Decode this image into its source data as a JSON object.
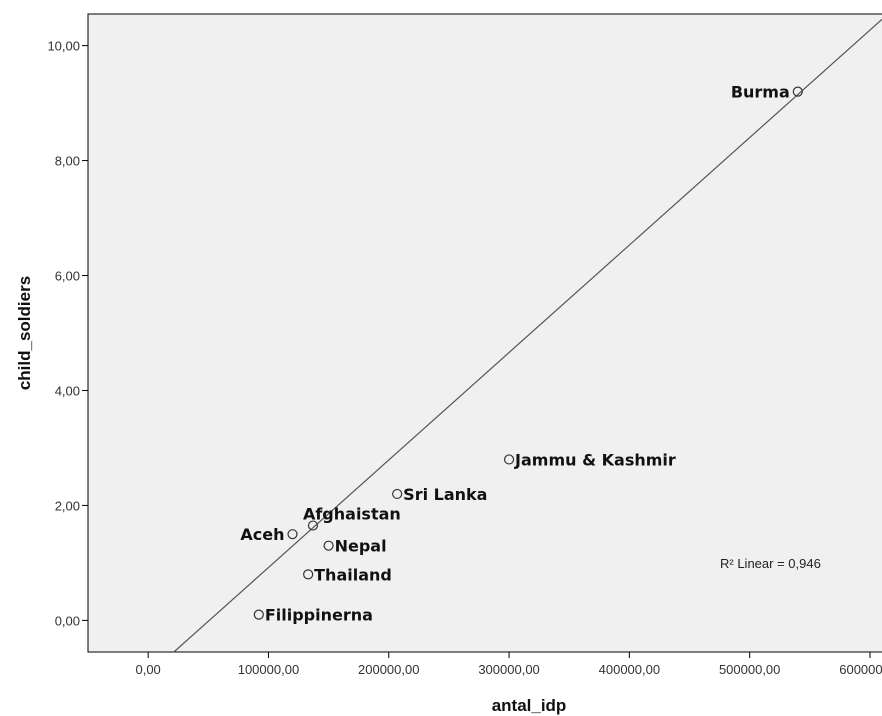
{
  "chart_data": {
    "type": "scatter",
    "xlabel": "antal_idp",
    "ylabel": "child_soldiers",
    "xlim": [
      -50000,
      610000
    ],
    "ylim": [
      -0.55,
      10.55
    ],
    "x_ticks": [
      0,
      100000,
      200000,
      300000,
      400000,
      500000,
      600000
    ],
    "x_tick_labels": [
      "0,00",
      "100000,00",
      "200000,00",
      "300000,00",
      "400000,00",
      "500000,00",
      "600000,00"
    ],
    "y_ticks": [
      0,
      2,
      4,
      6,
      8,
      10
    ],
    "y_tick_labels": [
      "0,00",
      "2,00",
      "4,00",
      "6,00",
      "8,00",
      "10,00"
    ],
    "points": [
      {
        "label": "Burma",
        "x": 540000,
        "y": 9.2,
        "label_side": "left"
      },
      {
        "label": "Jammu & Kashmir",
        "x": 300000,
        "y": 2.8,
        "label_side": "right"
      },
      {
        "label": "Sri Lanka",
        "x": 207000,
        "y": 2.2,
        "label_side": "right"
      },
      {
        "label": "Afghaistan",
        "x": 137000,
        "y": 1.65,
        "label_side": "above"
      },
      {
        "label": "Aceh",
        "x": 120000,
        "y": 1.5,
        "label_side": "left"
      },
      {
        "label": "Nepal",
        "x": 150000,
        "y": 1.3,
        "label_side": "right"
      },
      {
        "label": "Thailand",
        "x": 133000,
        "y": 0.8,
        "label_side": "right"
      },
      {
        "label": "Filippinerna",
        "x": 92000,
        "y": 0.1,
        "label_side": "right"
      }
    ],
    "fit_line": {
      "type": "linear",
      "intercept": -0.95,
      "slope": 1.87e-05
    },
    "annotation": "R² Linear = 0,946",
    "grid": false,
    "background": "#f0f0f0"
  }
}
